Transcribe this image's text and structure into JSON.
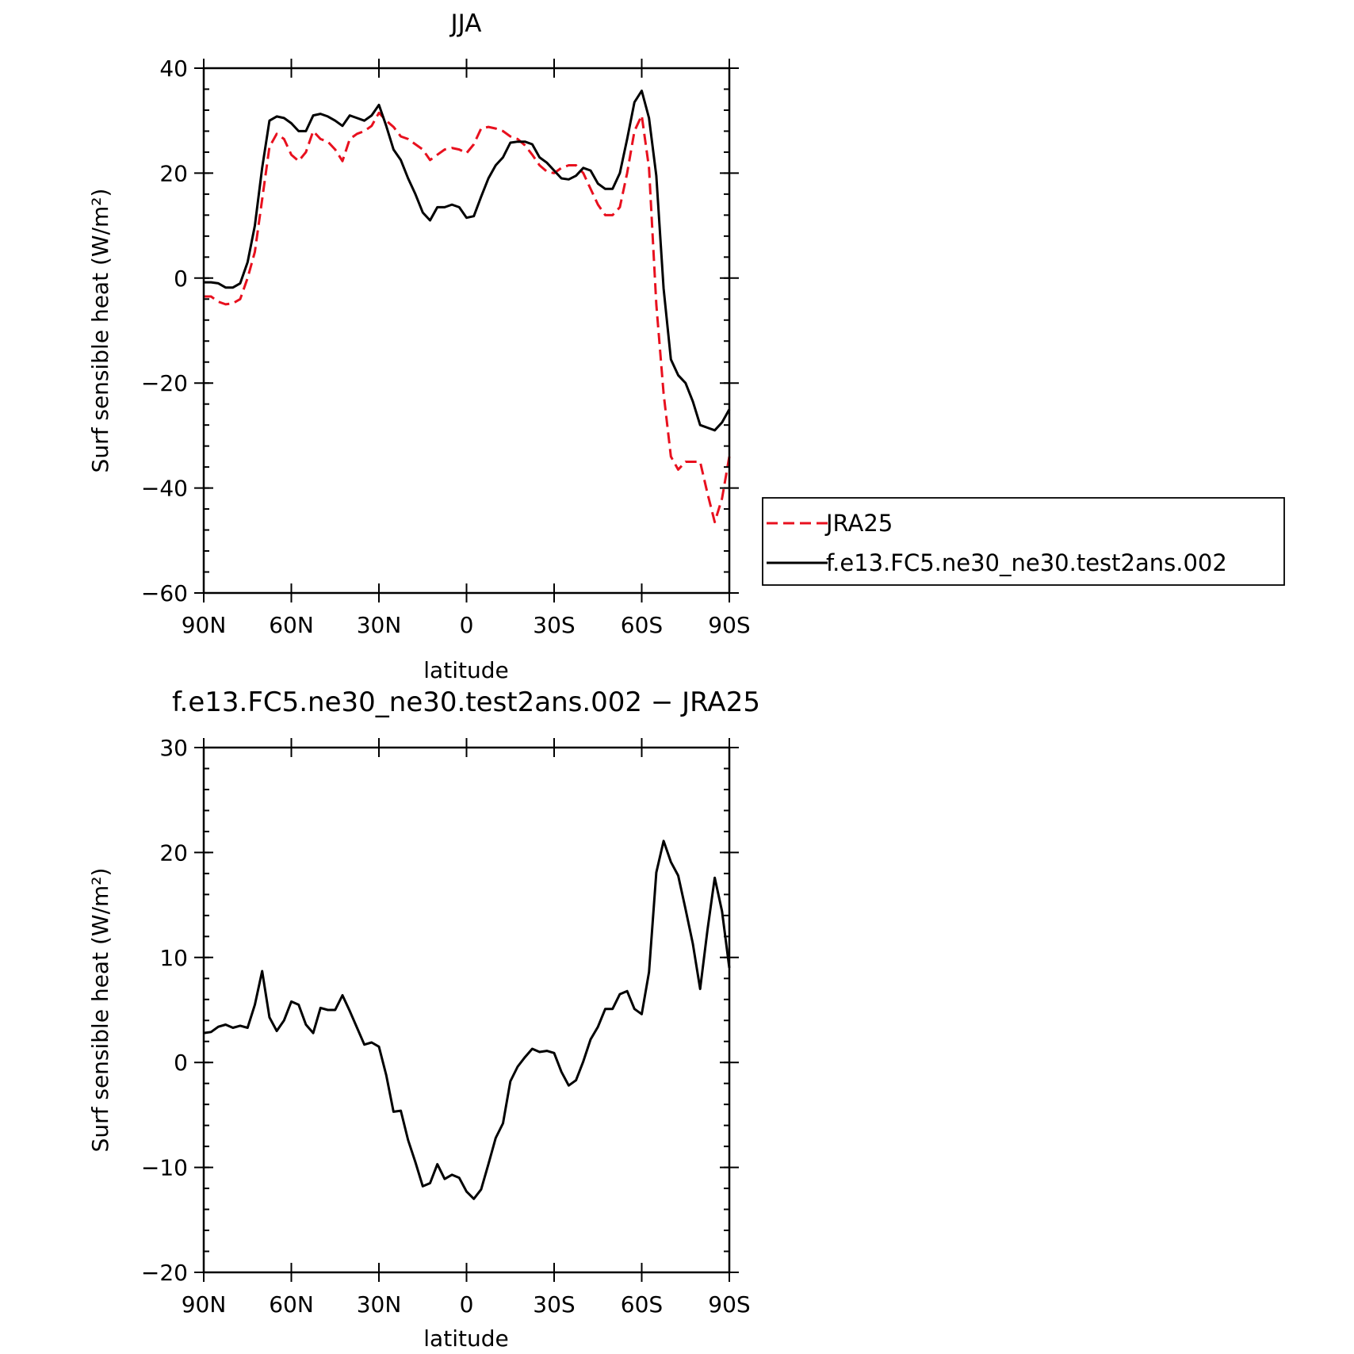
{
  "chart_data": [
    {
      "type": "line",
      "title": "JJA",
      "xlabel": "latitude",
      "ylabel": "Surf sensible heat (W/m²)",
      "ylim": [
        -60,
        40
      ],
      "yticks": [
        "−60",
        "−40",
        "−20",
        "0",
        "20",
        "40"
      ],
      "xlim": [
        90,
        -90
      ],
      "xticks": [
        "90N",
        "60N",
        "30N",
        "0",
        "30S",
        "60S",
        "90S"
      ],
      "legend": {
        "placement": "right, outside plot"
      },
      "series": [
        {
          "name": "JRA25",
          "color": "#e8101e",
          "dash": true,
          "x": [
            90,
            87.5,
            85,
            82.5,
            80,
            77.5,
            75,
            72.5,
            70,
            67.5,
            65,
            62.5,
            60,
            57.5,
            55,
            52.5,
            50,
            47.5,
            45,
            42.5,
            40,
            37.5,
            35,
            32.5,
            30,
            27.5,
            25,
            22.5,
            20,
            17.5,
            15,
            12.5,
            10,
            7.5,
            5,
            2.5,
            0,
            -2.5,
            -5,
            -7.5,
            -10,
            -12.5,
            -15,
            -17.5,
            -20,
            -22.5,
            -25,
            -27.5,
            -30,
            -32.5,
            -35,
            -37.5,
            -40,
            -42.5,
            -45,
            -47.5,
            -50,
            -52.5,
            -55,
            -57.5,
            -60,
            -62.5,
            -65,
            -67.5,
            -70,
            -72.5,
            -75,
            -77.5,
            -80,
            -82.5,
            -85,
            -87.5,
            -90
          ],
          "values": [
            -3.5,
            -3.5,
            -4.5,
            -5,
            -4.8,
            -4,
            0,
            5,
            15,
            25,
            27.5,
            26.5,
            23.5,
            22.3,
            24,
            28,
            26.5,
            26,
            24.5,
            22.3,
            26.5,
            27.5,
            28,
            29,
            31.5,
            30,
            28.8,
            27,
            26.5,
            25.5,
            24.5,
            22.5,
            23.5,
            24.5,
            24.8,
            24.5,
            23.8,
            25.5,
            28.5,
            28.8,
            28.5,
            28,
            27,
            26.5,
            25.3,
            23.5,
            21.5,
            20.3,
            20,
            21,
            21.5,
            21.5,
            20,
            17,
            14,
            12,
            12,
            13.5,
            20,
            28,
            31,
            21,
            -5,
            -22,
            -34,
            -36.5,
            -35,
            -35,
            -35,
            -41,
            -46.5,
            -42,
            -34
          ]
        },
        {
          "name": "f.e13.FC5.ne30_ne30.test2ans.002",
          "color": "#000000",
          "dash": false,
          "x": [
            90,
            87.5,
            85,
            82.5,
            80,
            77.5,
            75,
            72.5,
            70,
            67.5,
            65,
            62.5,
            60,
            57.5,
            55,
            52.5,
            50,
            47.5,
            45,
            42.5,
            40,
            37.5,
            35,
            32.5,
            30,
            27.5,
            25,
            22.5,
            20,
            17.5,
            15,
            12.5,
            10,
            7.5,
            5,
            2.5,
            0,
            -2.5,
            -5,
            -7.5,
            -10,
            -12.5,
            -15,
            -17.5,
            -20,
            -22.5,
            -25,
            -27.5,
            -30,
            -32.5,
            -35,
            -37.5,
            -40,
            -42.5,
            -45,
            -47.5,
            -50,
            -52.5,
            -55,
            -57.5,
            -60,
            -62.5,
            -65,
            -67.5,
            -70,
            -72.5,
            -75,
            -77.5,
            -80,
            -82.5,
            -85,
            -87.5,
            -90
          ],
          "values": [
            -0.8,
            -0.8,
            -1,
            -1.8,
            -1.8,
            -1,
            3,
            10,
            21,
            30,
            30.8,
            30.5,
            29.5,
            28,
            28,
            31,
            31.3,
            30.8,
            30,
            29,
            31,
            30.5,
            30,
            31,
            33,
            29,
            24.5,
            22.5,
            19,
            16,
            12.5,
            11,
            13.5,
            13.5,
            14,
            13.5,
            11.5,
            11.8,
            15.5,
            19,
            21.5,
            23,
            25.8,
            26,
            26,
            25.5,
            23,
            22,
            20.5,
            19,
            18.8,
            19.5,
            21,
            20.5,
            18,
            17,
            17,
            20,
            26.5,
            33.5,
            35.7,
            30.5,
            19.5,
            -2,
            -15.5,
            -18.5,
            -20,
            -23.5,
            -28,
            -28.5,
            -29,
            -27.5,
            -25
          ]
        }
      ]
    },
    {
      "type": "line",
      "title": "f.e13.FC5.ne30_ne30.test2ans.002 − JRA25",
      "xlabel": "latitude",
      "ylabel": "Surf sensible heat (W/m²)",
      "ylim": [
        -20,
        30
      ],
      "yticks": [
        "−20",
        "−10",
        "0",
        "10",
        "20",
        "30"
      ],
      "xlim": [
        90,
        -90
      ],
      "xticks": [
        "90N",
        "60N",
        "30N",
        "0",
        "30S",
        "60S",
        "90S"
      ],
      "series": [
        {
          "color": "#000000",
          "dash": false,
          "x": [
            90,
            87.5,
            85,
            82.5,
            80,
            77.5,
            75,
            72.5,
            70,
            67.5,
            65,
            62.5,
            60,
            57.5,
            55,
            52.5,
            50,
            47.5,
            45,
            42.5,
            40,
            37.5,
            35,
            32.5,
            30,
            27.5,
            25,
            22.5,
            20,
            17.5,
            15,
            12.5,
            10,
            7.5,
            5,
            2.5,
            0,
            -2.5,
            -5,
            -7.5,
            -10,
            -12.5,
            -15,
            -17.5,
            -20,
            -22.5,
            -25,
            -27.5,
            -30,
            -32.5,
            -35,
            -37.5,
            -40,
            -42.5,
            -45,
            -47.5,
            -50,
            -52.5,
            -55,
            -57.5,
            -60,
            -62.5,
            -65,
            -67.5,
            -70,
            -72.5,
            -75,
            -77.5,
            -80,
            -82.5,
            -85,
            -87.5,
            -90
          ],
          "values": [
            2.8,
            2.9,
            3.4,
            3.6,
            3.3,
            3.5,
            3.3,
            5.5,
            8.7,
            4.3,
            3,
            4,
            5.8,
            5.5,
            3.6,
            2.8,
            5.2,
            5,
            5,
            6.4,
            4.9,
            3.3,
            1.7,
            1.9,
            1.5,
            -1.2,
            -4.7,
            -4.6,
            -7.4,
            -9.5,
            -11.8,
            -11.5,
            -9.7,
            -11.1,
            -10.7,
            -11,
            -12.3,
            -13,
            -12.1,
            -9.7,
            -7.2,
            -5.8,
            -1.8,
            -0.4,
            0.5,
            1.3,
            1,
            1.1,
            0.9,
            -0.9,
            -2.2,
            -1.7,
            0.1,
            2.2,
            3.4,
            5.1,
            5.1,
            6.5,
            6.8,
            5.1,
            4.6,
            8.6,
            18.1,
            21.1,
            19.1,
            17.8,
            14.6,
            11.3,
            7,
            12.6,
            17.6,
            14.4,
            9
          ]
        }
      ]
    }
  ]
}
